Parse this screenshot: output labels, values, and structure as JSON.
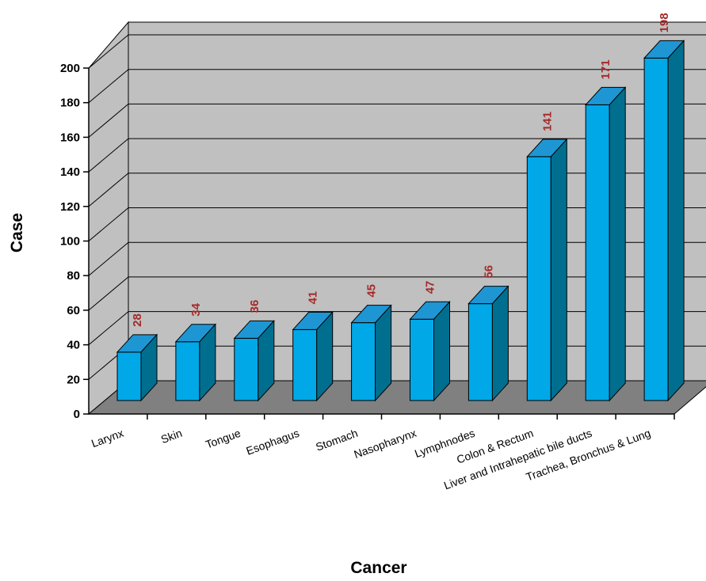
{
  "chart_data": {
    "type": "bar",
    "xlabel": "Cancer",
    "ylabel": "Case",
    "ylim": [
      0,
      200
    ],
    "yticks": [
      0,
      20,
      40,
      60,
      80,
      100,
      120,
      140,
      160,
      180,
      200
    ],
    "categories": [
      "Larynx",
      "Skin",
      "Tongue",
      "Esophagus",
      "Stomach",
      "Nasopharynx",
      "Lymphnodes",
      "Colon & Rectum",
      "Liver and Intrahepatic bile ducts",
      "Trachea, Bronchus & Lung"
    ],
    "values": [
      28,
      34,
      36,
      41,
      45,
      47,
      56,
      141,
      171,
      198
    ],
    "data_labels": [
      "28",
      "34",
      "36",
      "41",
      "45",
      "47",
      "56",
      "141",
      "171",
      "198"
    ],
    "grid": true,
    "three_d": true,
    "colors": {
      "bar_front": "#00a8e8",
      "bar_top": "#1e96d4",
      "bar_side": "#006f8f",
      "back_wall": "#c0c0c0",
      "floor": "#808080",
      "data_label": "#a52a2a"
    }
  }
}
